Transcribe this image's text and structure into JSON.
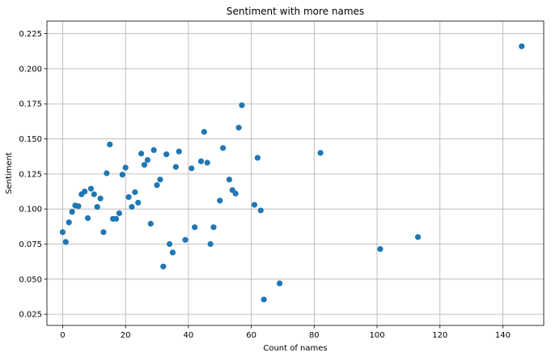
{
  "chart_data": {
    "type": "scatter",
    "title": "Sentiment with more names",
    "xlabel": "Count of names",
    "ylabel": "Sentiment",
    "xlim": [
      -5,
      153
    ],
    "ylim": [
      0.017,
      0.234
    ],
    "xticks": [
      0,
      20,
      40,
      60,
      80,
      100,
      120,
      140
    ],
    "yticks": [
      0.025,
      0.05,
      0.075,
      0.1,
      0.125,
      0.15,
      0.175,
      0.2,
      0.225
    ],
    "xtick_labels": [
      "0",
      "20",
      "40",
      "60",
      "80",
      "100",
      "120",
      "140"
    ],
    "ytick_labels": [
      "0.025",
      "0.050",
      "0.075",
      "0.100",
      "0.125",
      "0.150",
      "0.175",
      "0.200",
      "0.225"
    ],
    "grid": true,
    "marker_color": "#1f77b4",
    "points": [
      {
        "x": 0,
        "y": 0.0835
      },
      {
        "x": 1,
        "y": 0.0765
      },
      {
        "x": 2,
        "y": 0.0905
      },
      {
        "x": 3,
        "y": 0.098
      },
      {
        "x": 4,
        "y": 0.1025
      },
      {
        "x": 5,
        "y": 0.102
      },
      {
        "x": 6,
        "y": 0.1105
      },
      {
        "x": 7,
        "y": 0.1125
      },
      {
        "x": 8,
        "y": 0.0935
      },
      {
        "x": 9,
        "y": 0.1145
      },
      {
        "x": 10,
        "y": 0.1105
      },
      {
        "x": 11,
        "y": 0.1015
      },
      {
        "x": 12,
        "y": 0.1075
      },
      {
        "x": 13,
        "y": 0.0835
      },
      {
        "x": 14,
        "y": 0.1255
      },
      {
        "x": 15,
        "y": 0.146
      },
      {
        "x": 16,
        "y": 0.093
      },
      {
        "x": 17,
        "y": 0.093
      },
      {
        "x": 18,
        "y": 0.097
      },
      {
        "x": 19,
        "y": 0.1245
      },
      {
        "x": 20,
        "y": 0.1295
      },
      {
        "x": 21,
        "y": 0.1085
      },
      {
        "x": 22,
        "y": 0.1015
      },
      {
        "x": 23,
        "y": 0.112
      },
      {
        "x": 24,
        "y": 0.1045
      },
      {
        "x": 25,
        "y": 0.1395
      },
      {
        "x": 26,
        "y": 0.1315
      },
      {
        "x": 27,
        "y": 0.135
      },
      {
        "x": 28,
        "y": 0.0895
      },
      {
        "x": 29,
        "y": 0.142
      },
      {
        "x": 30,
        "y": 0.117
      },
      {
        "x": 31,
        "y": 0.121
      },
      {
        "x": 32,
        "y": 0.059
      },
      {
        "x": 33,
        "y": 0.139
      },
      {
        "x": 34,
        "y": 0.075
      },
      {
        "x": 35,
        "y": 0.069
      },
      {
        "x": 36,
        "y": 0.13
      },
      {
        "x": 37,
        "y": 0.141
      },
      {
        "x": 39,
        "y": 0.078
      },
      {
        "x": 41,
        "y": 0.129
      },
      {
        "x": 42,
        "y": 0.087
      },
      {
        "x": 44,
        "y": 0.134
      },
      {
        "x": 45,
        "y": 0.155
      },
      {
        "x": 46,
        "y": 0.133
      },
      {
        "x": 47,
        "y": 0.075
      },
      {
        "x": 48,
        "y": 0.087
      },
      {
        "x": 50,
        "y": 0.106
      },
      {
        "x": 51,
        "y": 0.1435
      },
      {
        "x": 53,
        "y": 0.121
      },
      {
        "x": 54,
        "y": 0.1135
      },
      {
        "x": 55,
        "y": 0.111
      },
      {
        "x": 56,
        "y": 0.158
      },
      {
        "x": 57,
        "y": 0.174
      },
      {
        "x": 61,
        "y": 0.103
      },
      {
        "x": 62,
        "y": 0.1365
      },
      {
        "x": 63,
        "y": 0.099
      },
      {
        "x": 64,
        "y": 0.0355
      },
      {
        "x": 69,
        "y": 0.047
      },
      {
        "x": 82,
        "y": 0.14
      },
      {
        "x": 101,
        "y": 0.0715
      },
      {
        "x": 113,
        "y": 0.08
      },
      {
        "x": 146,
        "y": 0.216
      }
    ]
  }
}
